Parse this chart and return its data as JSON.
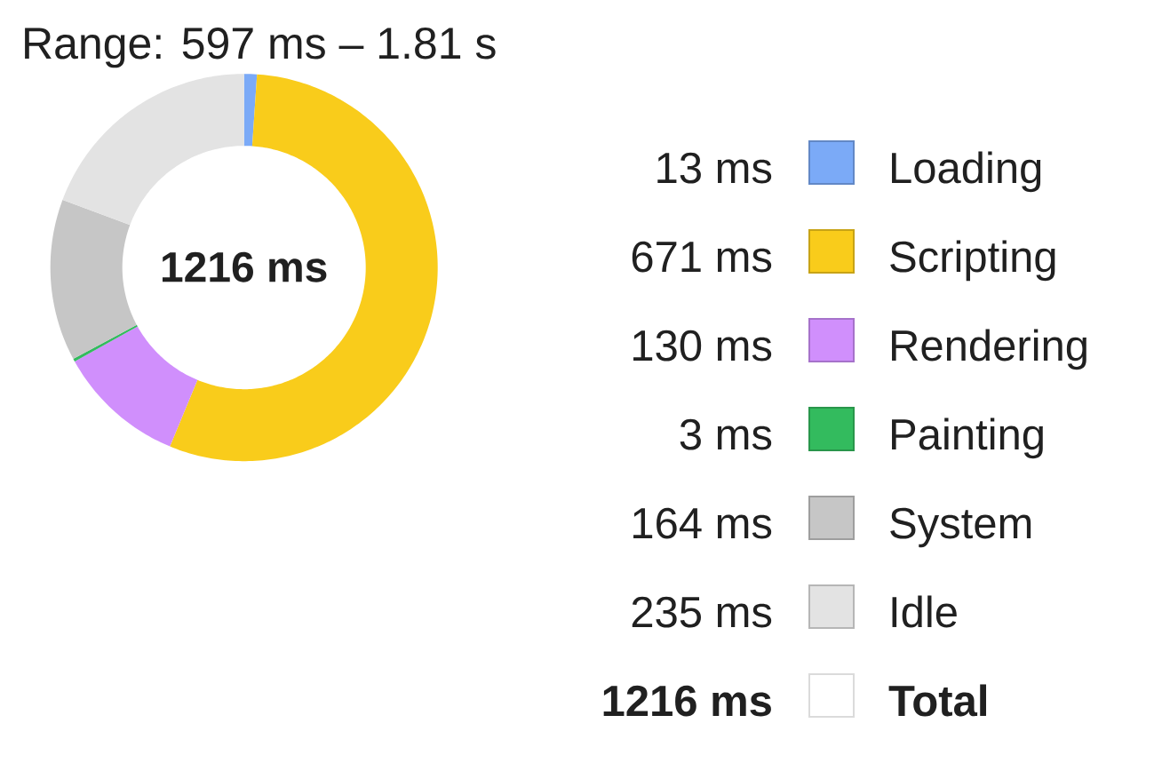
{
  "chart_data": {
    "type": "donut",
    "title": "Range: 597 ms – 1.81 s",
    "categories": [
      "Loading",
      "Scripting",
      "Rendering",
      "Painting",
      "System",
      "Idle"
    ],
    "values": [
      13,
      671,
      130,
      3,
      164,
      235
    ],
    "colors": [
      "#7baaf7",
      "#f9cc1b",
      "#d08ffc",
      "#33bb5e",
      "#c6c6c6",
      "#e3e3e3"
    ],
    "value_labels": [
      "13 ms",
      "671 ms",
      "130 ms",
      "3 ms",
      "164 ms",
      "235 ms"
    ],
    "totals": [
      "1216 ms"
    ],
    "annotations": [
      "Total"
    ],
    "legend": "right"
  }
}
